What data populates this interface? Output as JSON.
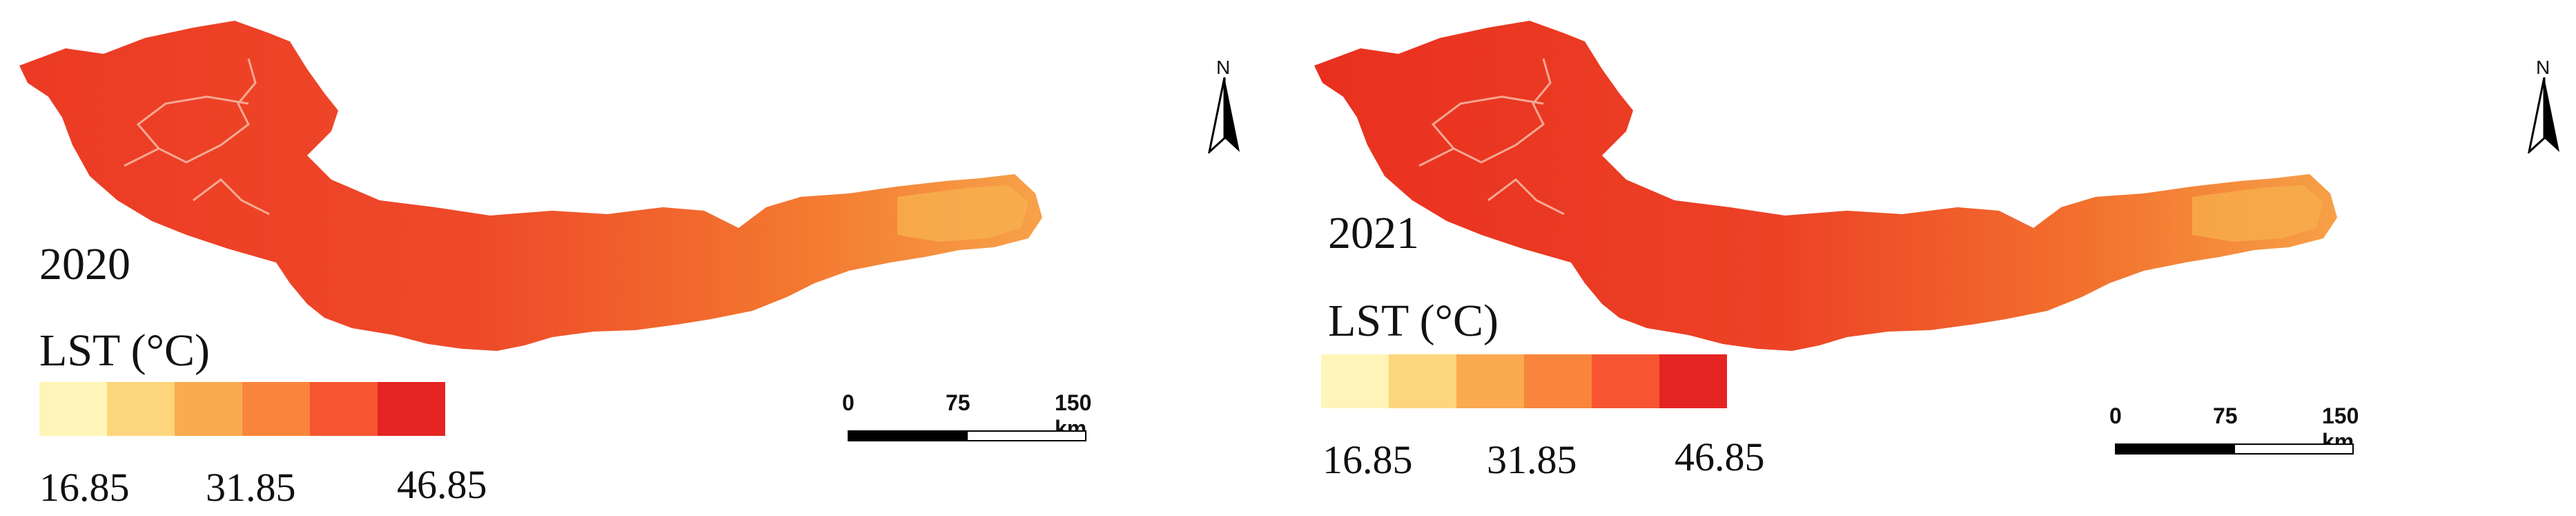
{
  "maps": [
    {
      "year": "2020",
      "legend": {
        "title": "LST (°C)",
        "ticks": [
          "16.85",
          "31.85",
          "46.85"
        ],
        "colors": [
          "#fff5b8",
          "#fdd57c",
          "#fbaa4f",
          "#f9853c",
          "#f75531",
          "#e52424"
        ]
      },
      "scalebar": {
        "labels": [
          "0",
          "75",
          "150 km"
        ]
      },
      "north_arrow": {
        "label": "N",
        "icon": "north-arrow-icon"
      }
    },
    {
      "year": "2021",
      "legend": {
        "title": "LST (°C)",
        "ticks": [
          "16.85",
          "31.85",
          "46.85"
        ],
        "colors": [
          "#fff5b8",
          "#fdd57c",
          "#fbaa4f",
          "#f9853c",
          "#f75531",
          "#e52424"
        ]
      },
      "scalebar": {
        "labels": [
          "0",
          "75",
          "150 km"
        ]
      },
      "north_arrow": {
        "label": "N",
        "icon": "north-arrow-icon"
      }
    }
  ]
}
